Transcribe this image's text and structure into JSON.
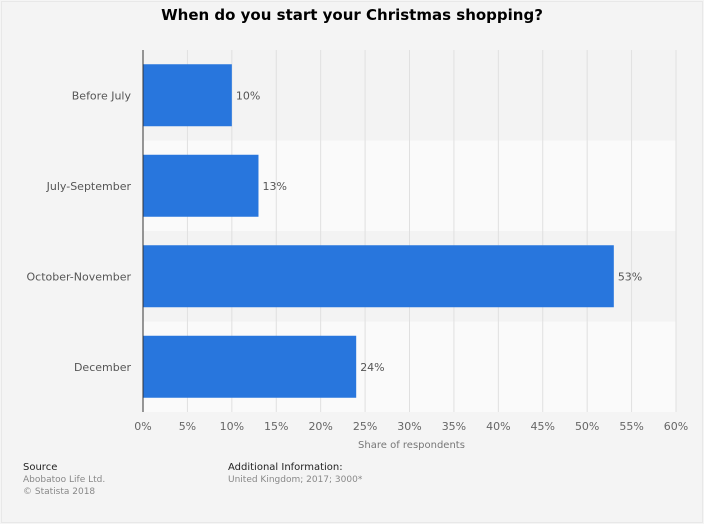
{
  "chart_data": {
    "type": "bar",
    "orientation": "horizontal",
    "title": "When do you start your Christmas shopping?",
    "categories": [
      "Before July",
      "July-September",
      "October-November",
      "December"
    ],
    "values": [
      10,
      13,
      53,
      24
    ],
    "value_labels": [
      "10%",
      "13%",
      "53%",
      "24%"
    ],
    "xlabel": "Share of respondents",
    "xlim": [
      0,
      60
    ],
    "xticks": [
      0,
      5,
      10,
      15,
      20,
      25,
      30,
      35,
      40,
      45,
      50,
      55,
      60
    ],
    "xtick_labels": [
      "0%",
      "5%",
      "10%",
      "15%",
      "20%",
      "25%",
      "30%",
      "35%",
      "40%",
      "45%",
      "50%",
      "55%",
      "60%"
    ],
    "grid": true,
    "bar_color": "#2876dd"
  },
  "footer": {
    "source_heading": "Source",
    "source_line1": "Abobatoo Life Ltd.",
    "source_line2": "© Statista 2018",
    "info_heading": "Additional Information:",
    "info_text": "United Kingdom; 2017; 3000*"
  }
}
